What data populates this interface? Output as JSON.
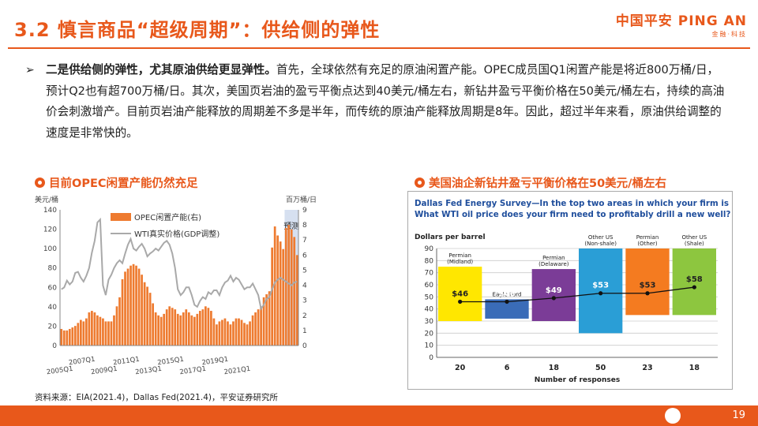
{
  "header": {
    "title": "3.2 慎言商品“超级周期”：供给侧的弹性",
    "logo_main": "中国平安 PING AN",
    "logo_sub": "金融·科技"
  },
  "body": {
    "bullet": "➢",
    "bold_part": "二是供给侧的弹性，尤其原油供给更显弹性。",
    "rest": "首先，全球依然有充足的原油闲置产能。OPEC成员国Q1闲置产能是将近800万桶/日，预计Q2也有超700万桶/日。其次，美国页岩油的盈亏平衡点达到40美元/桶左右，新钻井盈亏平衡价格在50美元/桶左右，持续的高油价会刺激增产。目前页岩油产能释放的周期差不多是半年，而传统的原油产能释放周期是8年。因此，超过半年来看，原油供给调整的速度是非常快的。"
  },
  "left_chart": {
    "subtitle": "目前OPEC闲置产能仍然充足"
  },
  "right_chart": {
    "subtitle": "美国油企新钻井盈亏平衡价格在50美元/桶左右"
  },
  "source": "资料来源：EIA(2021.4)，Dallas Fed(2021.4)，平安证券研究所",
  "footer": {
    "page": "19"
  },
  "colors": {
    "accent": "#e8581b"
  },
  "chart_data": [
    {
      "type": "bar",
      "ylabel_left": "美元/桶",
      "ylabel_right": "百万桶/日",
      "ylim_left": [
        0,
        140
      ],
      "ylim_right": [
        0,
        9
      ],
      "yticks_left": [
        0,
        20,
        40,
        60,
        80,
        100,
        120,
        140
      ],
      "yticks_right": [
        0,
        1,
        2,
        3,
        4,
        5,
        6,
        7,
        8,
        9
      ],
      "xticks": [
        "2005Q1",
        "2007Q1",
        "2009Q1",
        "2011Q1",
        "2013Q1",
        "2015Q1",
        "2017Q1",
        "2019Q1",
        "2021Q1"
      ],
      "forecast_label": "预测",
      "legend": "top-left",
      "series": [
        {
          "name": "OPEC闲置产能(右)",
          "type": "bar",
          "axis": "right",
          "color": "#ee7b30",
          "values": [
            1.1,
            1.0,
            1.0,
            1.1,
            1.2,
            1.3,
            1.5,
            1.7,
            1.6,
            1.8,
            2.2,
            2.3,
            2.2,
            2.0,
            1.9,
            1.8,
            1.6,
            1.6,
            1.6,
            2.0,
            2.6,
            3.2,
            4.4,
            4.9,
            5.1,
            5.3,
            5.4,
            5.3,
            5.1,
            4.7,
            4.2,
            3.9,
            3.5,
            2.8,
            2.2,
            2.0,
            1.9,
            2.1,
            2.4,
            2.6,
            2.5,
            2.4,
            2.1,
            2.0,
            2.2,
            2.4,
            2.2,
            2.0,
            1.9,
            2.1,
            2.3,
            2.4,
            2.6,
            2.5,
            2.3,
            1.8,
            1.4,
            1.6,
            1.7,
            1.8,
            1.6,
            1.4,
            1.6,
            1.8,
            1.8,
            1.7,
            1.5,
            1.4,
            1.6,
            2.0,
            2.2,
            2.4,
            2.6,
            3.2,
            3.4,
            3.6,
            6.5,
            7.9,
            7.3,
            6.9,
            6.4,
            7.8,
            8.0,
            7.7,
            7.2,
            6.0
          ]
        },
        {
          "name": "WTI真实价格(GDP调整)",
          "type": "line",
          "axis": "left",
          "color": "#a9a9a9",
          "values": [
            58,
            60,
            67,
            63,
            66,
            75,
            76,
            70,
            66,
            72,
            80,
            96,
            108,
            127,
            130,
            62,
            52,
            68,
            73,
            80,
            85,
            88,
            85,
            95,
            104,
            110,
            100,
            98,
            102,
            105,
            100,
            92,
            95,
            97,
            100,
            98,
            102,
            106,
            108,
            104,
            95,
            80,
            58,
            52,
            55,
            60,
            60,
            52,
            42,
            40,
            46,
            50,
            48,
            55,
            53,
            57,
            57,
            52,
            60,
            65,
            67,
            72,
            66,
            70,
            68,
            63,
            58,
            60,
            60,
            64,
            58,
            52,
            38,
            42,
            48,
            50,
            58,
            65,
            68,
            70,
            68,
            66,
            64,
            62,
            65,
            66
          ]
        }
      ],
      "forecast_start_index": 78
    },
    {
      "type": "bar",
      "title": "Dallas Fed Energy Survey—In the top two areas in which your firm is active: What WTI oil price does your firm need to profitably drill a new well?",
      "ylabel": "Dollars per barrel",
      "xlabel": "Number of responses",
      "ylim": [
        0,
        90
      ],
      "yticks": [
        0,
        10,
        20,
        30,
        40,
        50,
        60,
        70,
        80,
        90
      ],
      "categories": [
        "Permian (Midland)",
        "Eagle Ford",
        "Permian (Delaware)",
        "Other US (Non-shale)",
        "Permian (Other)",
        "Other US (Shale)"
      ],
      "responses": [
        "20",
        "6",
        "18",
        "50",
        "23",
        "18"
      ],
      "values": [
        46,
        46,
        49,
        53,
        53,
        58
      ],
      "value_labels": [
        "$46",
        "$46",
        "$49",
        "$53",
        "$53",
        "$58"
      ],
      "ranges": [
        [
          30,
          75
        ],
        [
          32,
          48
        ],
        [
          30,
          73
        ],
        [
          20,
          90
        ],
        [
          35,
          90
        ],
        [
          35,
          90
        ]
      ],
      "colors": [
        "#ffe700",
        "#3a6cb8",
        "#7b3c97",
        "#2a9ed6",
        "#f47b20",
        "#8dc63f"
      ]
    }
  ]
}
